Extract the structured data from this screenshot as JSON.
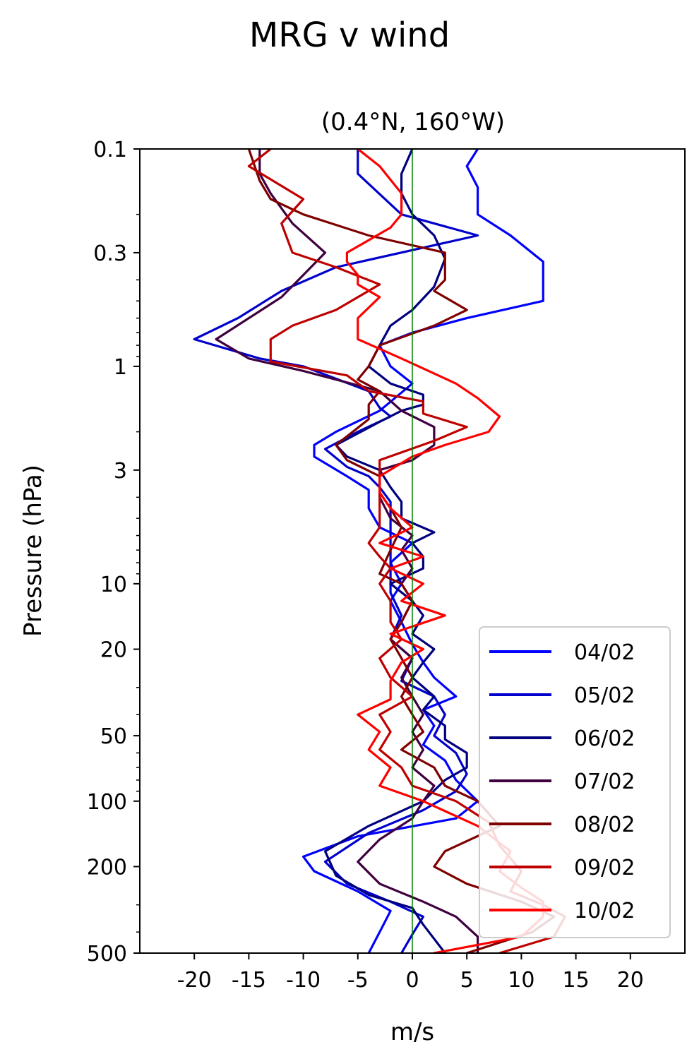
{
  "chart_data": {
    "type": "line",
    "title": "MRG v wind",
    "subtitle": "(0.4°N, 160°W)",
    "xlabel": "m/s",
    "ylabel": "Pressure (hPa)",
    "xlim": [
      -25,
      25
    ],
    "ylim": [
      500,
      0.1
    ],
    "yscale": "log",
    "xticks": [
      -20,
      -15,
      -10,
      -5,
      0,
      5,
      10,
      15,
      20
    ],
    "xtick_labels": [
      "-20",
      "-15",
      "-10",
      "-5",
      "0",
      "5",
      "10",
      "15",
      "20"
    ],
    "yticks": [
      0.1,
      0.3,
      1,
      3,
      10,
      20,
      50,
      100,
      200,
      500
    ],
    "ytick_labels": [
      "0.1",
      "0.3",
      "1",
      "3",
      "10",
      "20",
      "50",
      "100",
      "200",
      "500"
    ],
    "zero_line_color": "#008000",
    "legend_position": "lower-right",
    "series": [
      {
        "name": "04/02",
        "color": "#0000ff",
        "points": [
          [
            6,
            0.1
          ],
          [
            5,
            0.12
          ],
          [
            6,
            0.15
          ],
          [
            6,
            0.2
          ],
          [
            9,
            0.25
          ],
          [
            12,
            0.33
          ],
          [
            12,
            0.5
          ],
          [
            5,
            0.6
          ],
          [
            0,
            0.7
          ],
          [
            -3,
            0.8
          ],
          [
            -2,
            1.0
          ],
          [
            0,
            1.2
          ],
          [
            -3,
            1.6
          ],
          [
            -7,
            2.0
          ],
          [
            -9,
            2.3
          ],
          [
            -9,
            2.6
          ],
          [
            -6,
            3.2
          ],
          [
            -4,
            3.7
          ],
          [
            -4,
            4.5
          ],
          [
            -3,
            5.5
          ],
          [
            0,
            6.5
          ],
          [
            -2,
            8
          ],
          [
            -1,
            10
          ],
          [
            -2,
            12
          ],
          [
            -1,
            15
          ],
          [
            0,
            19
          ],
          [
            1,
            23
          ],
          [
            2,
            27
          ],
          [
            4,
            33
          ],
          [
            1,
            38
          ],
          [
            2,
            45
          ],
          [
            1,
            55
          ],
          [
            3,
            65
          ],
          [
            4,
            80
          ],
          [
            6,
            100
          ],
          [
            4,
            120
          ],
          [
            -5,
            145
          ],
          [
            -10,
            180
          ],
          [
            -9,
            210
          ],
          [
            -5,
            260
          ],
          [
            -2,
            320
          ],
          [
            -3,
            400
          ],
          [
            -4,
            500
          ]
        ]
      },
      {
        "name": "05/02",
        "color": "#0000cc",
        "points": [
          [
            -5,
            0.1
          ],
          [
            -5,
            0.13
          ],
          [
            -1,
            0.2
          ],
          [
            6,
            0.25
          ],
          [
            -7,
            0.35
          ],
          [
            -12,
            0.45
          ],
          [
            -16,
            0.6
          ],
          [
            -20,
            0.75
          ],
          [
            -14,
            0.92
          ],
          [
            -10,
            1.0
          ],
          [
            -4,
            1.3
          ],
          [
            -3,
            1.55
          ],
          [
            -2,
            1.7
          ],
          [
            -5,
            2.0
          ],
          [
            -8,
            2.4
          ],
          [
            -6,
            2.9
          ],
          [
            -4,
            3.2
          ],
          [
            -3,
            3.6
          ],
          [
            -2,
            4.2
          ],
          [
            -2,
            5.0
          ],
          [
            -2,
            6.0
          ],
          [
            -2,
            7.5
          ],
          [
            -2,
            9.0
          ],
          [
            -2,
            11
          ],
          [
            -1,
            14
          ],
          [
            -2,
            18
          ],
          [
            0,
            22
          ],
          [
            -1,
            28
          ],
          [
            2,
            33
          ],
          [
            3,
            40
          ],
          [
            2,
            50
          ],
          [
            4,
            60
          ],
          [
            5,
            75
          ],
          [
            4,
            90
          ],
          [
            1,
            110
          ],
          [
            -4,
            140
          ],
          [
            -8,
            190
          ],
          [
            -6,
            240
          ],
          [
            -2,
            290
          ],
          [
            1,
            340
          ],
          [
            0,
            410
          ],
          [
            -1,
            500
          ]
        ]
      },
      {
        "name": "06/02",
        "color": "#00007f",
        "points": [
          [
            0,
            0.1
          ],
          [
            -1,
            0.13
          ],
          [
            -1,
            0.16
          ],
          [
            0,
            0.2
          ],
          [
            2,
            0.25
          ],
          [
            3,
            0.32
          ],
          [
            2,
            0.43
          ],
          [
            0,
            0.55
          ],
          [
            -2,
            0.65
          ],
          [
            -3,
            0.8
          ],
          [
            -4,
            1.0
          ],
          [
            -2,
            1.2
          ],
          [
            1,
            1.35
          ],
          [
            1,
            1.5
          ],
          [
            -1,
            1.6
          ],
          [
            -3,
            1.8
          ],
          [
            -7,
            2.3
          ],
          [
            -6,
            2.6
          ],
          [
            -3,
            3.0
          ],
          [
            -2,
            3.6
          ],
          [
            -1,
            4.2
          ],
          [
            -1,
            5.0
          ],
          [
            2,
            5.8
          ],
          [
            0,
            6.5
          ],
          [
            1,
            7.5
          ],
          [
            1,
            8.5
          ],
          [
            -2,
            10
          ],
          [
            0,
            12
          ],
          [
            1,
            14
          ],
          [
            0,
            17
          ],
          [
            2,
            20
          ],
          [
            1,
            23
          ],
          [
            0,
            27
          ],
          [
            2,
            33
          ],
          [
            1,
            38
          ],
          [
            3,
            45
          ],
          [
            3,
            52
          ],
          [
            5,
            60
          ],
          [
            5,
            70
          ],
          [
            3,
            80
          ],
          [
            1,
            100
          ],
          [
            -4,
            130
          ],
          [
            -8,
            170
          ],
          [
            -7,
            220
          ],
          [
            -4,
            270
          ],
          [
            0,
            310
          ],
          [
            1,
            370
          ],
          [
            2,
            430
          ],
          [
            3,
            500
          ]
        ]
      },
      {
        "name": "07/02",
        "color": "#3f003f",
        "points": [
          [
            -14,
            0.1
          ],
          [
            -14,
            0.13
          ],
          [
            -13,
            0.16
          ],
          [
            -11,
            0.22
          ],
          [
            -8,
            0.3
          ],
          [
            -10,
            0.38
          ],
          [
            -12,
            0.48
          ],
          [
            -15,
            0.6
          ],
          [
            -18,
            0.75
          ],
          [
            -15,
            0.92
          ],
          [
            -10,
            1.05
          ],
          [
            -3,
            1.3
          ],
          [
            -1,
            1.6
          ],
          [
            2,
            1.9
          ],
          [
            2,
            2.3
          ],
          [
            0,
            2.7
          ],
          [
            -3,
            3.0
          ],
          [
            -3,
            3.4
          ],
          [
            -3,
            4.0
          ],
          [
            -2,
            5.0
          ],
          [
            0,
            6.0
          ],
          [
            -1,
            7.0
          ],
          [
            0,
            8.5
          ],
          [
            -1,
            10
          ],
          [
            0,
            12
          ],
          [
            -1,
            15
          ],
          [
            -2,
            18
          ],
          [
            0,
            22
          ],
          [
            -1,
            27
          ],
          [
            0,
            33
          ],
          [
            1,
            40
          ],
          [
            0,
            48
          ],
          [
            1,
            58
          ],
          [
            0,
            70
          ],
          [
            2,
            85
          ],
          [
            1,
            100
          ],
          [
            0,
            120
          ],
          [
            -3,
            150
          ],
          [
            -5,
            190
          ],
          [
            -3,
            240
          ],
          [
            1,
            290
          ],
          [
            4,
            340
          ],
          [
            6,
            420
          ],
          [
            6,
            500
          ]
        ]
      },
      {
        "name": "08/02",
        "color": "#7f0000",
        "points": [
          [
            -15,
            0.1
          ],
          [
            -14,
            0.14
          ],
          [
            -13,
            0.17
          ],
          [
            -10,
            0.2
          ],
          [
            -4,
            0.25
          ],
          [
            3,
            0.3
          ],
          [
            3,
            0.4
          ],
          [
            2,
            0.45
          ],
          [
            5,
            0.55
          ],
          [
            2,
            0.65
          ],
          [
            -3,
            0.8
          ],
          [
            -4,
            1.0
          ],
          [
            -5,
            1.15
          ],
          [
            -3,
            1.3
          ],
          [
            -4,
            1.5
          ],
          [
            -4,
            1.75
          ],
          [
            -7,
            2.3
          ],
          [
            -6,
            2.7
          ],
          [
            -3,
            3.2
          ],
          [
            -3,
            3.8
          ],
          [
            -2,
            4.5
          ],
          [
            -1,
            5.5
          ],
          [
            -2,
            7
          ],
          [
            -3,
            9
          ],
          [
            -1,
            10
          ],
          [
            0,
            12
          ],
          [
            -1,
            15
          ],
          [
            -2,
            18
          ],
          [
            -1,
            22
          ],
          [
            0,
            27
          ],
          [
            -1,
            33
          ],
          [
            0,
            40
          ],
          [
            1,
            48
          ],
          [
            -1,
            58
          ],
          [
            2,
            70
          ],
          [
            3,
            85
          ],
          [
            6,
            100
          ],
          [
            8,
            130
          ],
          [
            3,
            170
          ],
          [
            2,
            200
          ],
          [
            5,
            240
          ],
          [
            10,
            290
          ],
          [
            13,
            340
          ],
          [
            11,
            400
          ],
          [
            5,
            500
          ]
        ]
      },
      {
        "name": "09/02",
        "color": "#bf0000",
        "points": [
          [
            -13,
            0.1
          ],
          [
            -15,
            0.12
          ],
          [
            -10,
            0.17
          ],
          [
            -12,
            0.22
          ],
          [
            -11,
            0.3
          ],
          [
            -7,
            0.35
          ],
          [
            -3,
            0.42
          ],
          [
            -7,
            0.55
          ],
          [
            -11,
            0.65
          ],
          [
            -13,
            0.75
          ],
          [
            -13,
            0.95
          ],
          [
            -6,
            1.1
          ],
          [
            -4,
            1.3
          ],
          [
            1,
            1.45
          ],
          [
            1,
            1.65
          ],
          [
            5,
            1.9
          ],
          [
            2,
            2.2
          ],
          [
            -3,
            2.7
          ],
          [
            -3,
            3.2
          ],
          [
            -3,
            3.8
          ],
          [
            -3,
            4.5
          ],
          [
            -3,
            5.5
          ],
          [
            -4,
            6.5
          ],
          [
            -3,
            7.5
          ],
          [
            -2,
            8.5
          ],
          [
            -3,
            10
          ],
          [
            -2,
            12
          ],
          [
            -2,
            15
          ],
          [
            -1,
            18
          ],
          [
            -3,
            22
          ],
          [
            -2,
            27
          ],
          [
            0,
            33
          ],
          [
            -3,
            40
          ],
          [
            -2,
            48
          ],
          [
            -3,
            58
          ],
          [
            -1,
            70
          ],
          [
            0,
            85
          ],
          [
            4,
            100
          ],
          [
            7,
            125
          ],
          [
            8,
            160
          ],
          [
            10,
            210
          ],
          [
            9,
            260
          ],
          [
            12,
            300
          ],
          [
            14,
            340
          ],
          [
            13,
            420
          ],
          [
            8,
            500
          ]
        ]
      },
      {
        "name": "10/02",
        "color": "#ff0000",
        "points": [
          [
            -5,
            0.1
          ],
          [
            -3,
            0.12
          ],
          [
            -1,
            0.16
          ],
          [
            -1,
            0.2
          ],
          [
            -2,
            0.23
          ],
          [
            -6,
            0.3
          ],
          [
            -6,
            0.33
          ],
          [
            -5,
            0.38
          ],
          [
            -5,
            0.42
          ],
          [
            -3,
            0.48
          ],
          [
            -5,
            0.6
          ],
          [
            -5,
            0.75
          ],
          [
            -1,
            0.92
          ],
          [
            4,
            1.2
          ],
          [
            6,
            1.4
          ],
          [
            8,
            1.7
          ],
          [
            7,
            2.0
          ],
          [
            3,
            2.3
          ],
          [
            0,
            2.6
          ],
          [
            -3,
            3.2
          ],
          [
            -3,
            3.8
          ],
          [
            -2,
            4.5
          ],
          [
            0,
            5.5
          ],
          [
            -3,
            6.5
          ],
          [
            1,
            7.5
          ],
          [
            -2,
            8.5
          ],
          [
            1,
            10
          ],
          [
            -1,
            12
          ],
          [
            3,
            14
          ],
          [
            -2,
            17
          ],
          [
            1,
            20
          ],
          [
            -1,
            23
          ],
          [
            -2,
            28
          ],
          [
            -2,
            34
          ],
          [
            -5,
            40
          ],
          [
            -3,
            48
          ],
          [
            -4,
            58
          ],
          [
            -2,
            70
          ],
          [
            -3,
            85
          ],
          [
            1,
            100
          ],
          [
            6,
            130
          ],
          [
            9,
            170
          ],
          [
            8,
            210
          ],
          [
            10,
            250
          ],
          [
            12,
            290
          ],
          [
            12,
            340
          ],
          [
            10,
            420
          ],
          [
            2,
            500
          ]
        ]
      }
    ]
  }
}
